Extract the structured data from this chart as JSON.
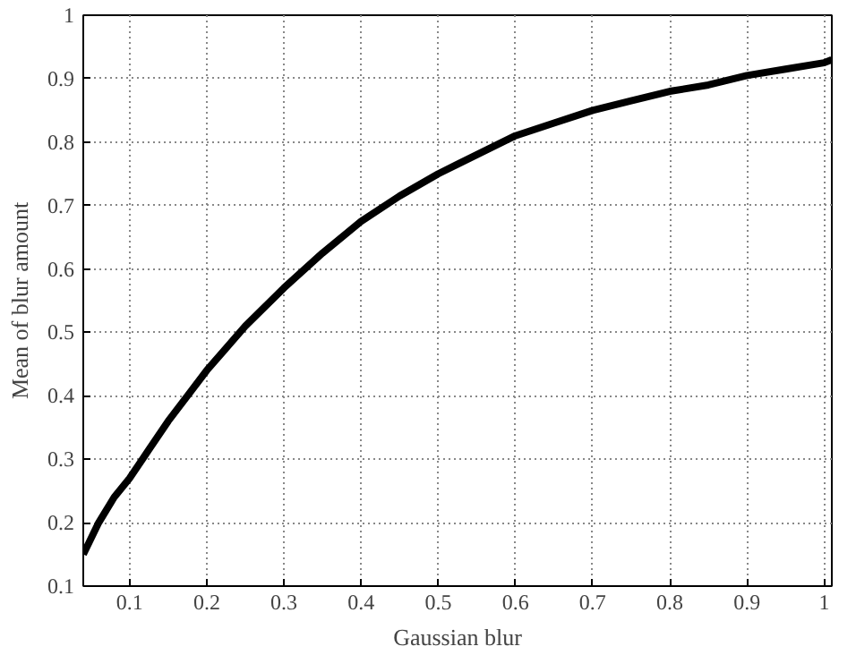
{
  "chart_data": {
    "type": "line",
    "xlabel": "Gaussian blur",
    "ylabel": "Mean of blur amount",
    "x": [
      0.04,
      0.06,
      0.08,
      0.1,
      0.125,
      0.15,
      0.175,
      0.2,
      0.25,
      0.3,
      0.35,
      0.4,
      0.45,
      0.5,
      0.55,
      0.6,
      0.65,
      0.7,
      0.75,
      0.8,
      0.85,
      0.9,
      0.95,
      1.0,
      1.01
    ],
    "series": [
      {
        "color": "#000000",
        "values": [
          0.15,
          0.2,
          0.24,
          0.27,
          0.315,
          0.36,
          0.4,
          0.44,
          0.51,
          0.57,
          0.625,
          0.675,
          0.715,
          0.75,
          0.78,
          0.81,
          0.83,
          0.85,
          0.865,
          0.88,
          0.89,
          0.905,
          0.915,
          0.925,
          0.93
        ]
      }
    ],
    "xlim": [
      0.04,
      1.01
    ],
    "ylim": [
      0.1,
      1
    ],
    "xticks": [
      0.1,
      0.2,
      0.3,
      0.4,
      0.5,
      0.6,
      0.7,
      0.8,
      0.9,
      1
    ],
    "yticks": [
      0.1,
      0.2,
      0.3,
      0.4,
      0.5,
      0.6,
      0.7,
      0.8,
      0.9,
      1
    ],
    "grid": true,
    "line_style": "solid"
  }
}
